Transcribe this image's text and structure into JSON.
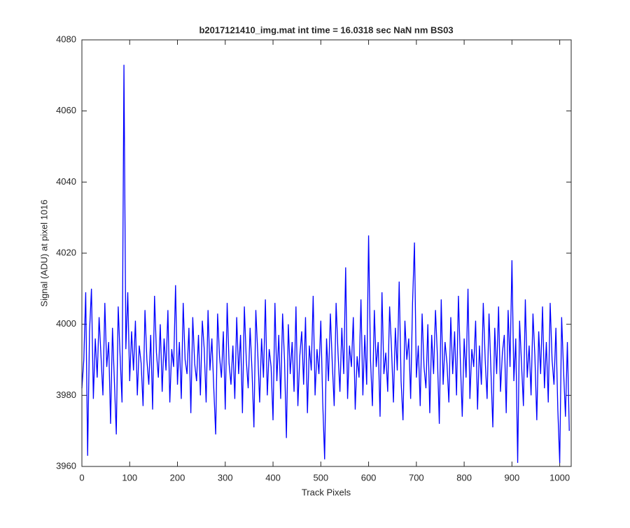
{
  "chart_data": {
    "type": "line",
    "title": "b2017121410_img.mat int time = 16.0318 sec  NaN nm BS03",
    "x_label": "Track Pixels",
    "y_label": "Signal (ADU) at pixel 1016",
    "xlim": [
      0,
      1024
    ],
    "xticks": [
      0,
      100,
      200,
      300,
      400,
      500,
      600,
      700,
      800,
      900,
      1000
    ],
    "ylim": [
      3960,
      4080
    ],
    "yticks": [
      3960,
      3980,
      4000,
      4020,
      4040,
      4060,
      4080
    ],
    "grid": false,
    "x": [
      0,
      4,
      8,
      12,
      16,
      20,
      24,
      28,
      32,
      36,
      40,
      44,
      48,
      52,
      56,
      60,
      64,
      68,
      72,
      76,
      80,
      84,
      88,
      92,
      96,
      100,
      104,
      108,
      112,
      116,
      120,
      124,
      128,
      132,
      136,
      140,
      144,
      148,
      152,
      156,
      160,
      164,
      168,
      172,
      176,
      180,
      184,
      188,
      192,
      196,
      200,
      204,
      208,
      212,
      216,
      220,
      224,
      228,
      232,
      236,
      240,
      244,
      248,
      252,
      256,
      260,
      264,
      268,
      272,
      276,
      280,
      284,
      288,
      292,
      296,
      300,
      304,
      308,
      312,
      316,
      320,
      324,
      328,
      332,
      336,
      340,
      344,
      348,
      352,
      356,
      360,
      364,
      368,
      372,
      376,
      380,
      384,
      388,
      392,
      396,
      400,
      404,
      408,
      412,
      416,
      420,
      424,
      428,
      432,
      436,
      440,
      444,
      448,
      452,
      456,
      460,
      464,
      468,
      472,
      476,
      480,
      484,
      488,
      492,
      496,
      500,
      504,
      508,
      512,
      516,
      520,
      524,
      528,
      532,
      536,
      540,
      544,
      548,
      552,
      556,
      560,
      564,
      568,
      572,
      576,
      580,
      584,
      588,
      592,
      596,
      600,
      604,
      608,
      612,
      616,
      620,
      624,
      628,
      632,
      636,
      640,
      644,
      648,
      652,
      656,
      660,
      664,
      668,
      672,
      676,
      680,
      684,
      688,
      692,
      696,
      700,
      704,
      708,
      712,
      716,
      720,
      724,
      728,
      732,
      736,
      740,
      744,
      748,
      752,
      756,
      760,
      764,
      768,
      772,
      776,
      780,
      784,
      788,
      792,
      796,
      800,
      804,
      808,
      812,
      816,
      820,
      824,
      828,
      832,
      836,
      840,
      844,
      848,
      852,
      856,
      860,
      864,
      868,
      872,
      876,
      880,
      884,
      888,
      892,
      896,
      900,
      904,
      908,
      912,
      916,
      920,
      924,
      928,
      932,
      936,
      940,
      944,
      948,
      952,
      956,
      960,
      964,
      968,
      972,
      976,
      980,
      984,
      988,
      992,
      996,
      1000,
      1004,
      1008,
      1012,
      1016,
      1020
    ],
    "series": [
      {
        "color": "#0000ff",
        "values": [
          3982,
          3990,
          4009,
          3963,
          3998,
          4010,
          3979,
          3996,
          3985,
          4002,
          3991,
          3980,
          4006,
          3988,
          3995,
          3972,
          3999,
          3984,
          3969,
          4005,
          3991,
          3978,
          4073,
          3993,
          4009,
          3984,
          3998,
          3987,
          4001,
          3980,
          3994,
          3989,
          3977,
          4004,
          3990,
          3983,
          3997,
          3976,
          4008,
          3992,
          3985,
          4000,
          3981,
          3996,
          3987,
          4004,
          3978,
          3993,
          3988,
          4011,
          3983,
          3995,
          3979,
          4006,
          3990,
          3986,
          3999,
          3975,
          4002,
          3989,
          3984,
          3997,
          3980,
          4001,
          3993,
          3978,
          4004,
          3987,
          3996,
          3982,
          3969,
          4003,
          3991,
          3985,
          3998,
          3976,
          4006,
          3989,
          3983,
          3994,
          3979,
          4002,
          3986,
          3997,
          3975,
          4005,
          3990,
          3982,
          3999,
          3987,
          3971,
          4004,
          3992,
          3978,
          3996,
          3985,
          4007,
          3980,
          3993,
          3988,
          3973,
          4006,
          3984,
          3997,
          3979,
          4003,
          3990,
          3968,
          4000,
          3986,
          3995,
          3981,
          4005,
          3977,
          3991,
          3998,
          3983,
          4002,
          3975,
          3994,
          3987,
          4008,
          3980,
          3993,
          3986,
          4001,
          3978,
          3962,
          3996,
          3984,
          4003,
          3989,
          3977,
          4006,
          3992,
          3981,
          3999,
          3986,
          4016,
          3979,
          3994,
          3988,
          4002,
          3976,
          3991,
          3985,
          4007,
          3980,
          3997,
          3983,
          4025,
          3990,
          3977,
          4004,
          3988,
          3995,
          3974,
          4009,
          3986,
          3992,
          3981,
          4005,
          3993,
          3978,
          3999,
          3987,
          4012,
          3984,
          3973,
          4001,
          3990,
          3996,
          3979,
          4006,
          4023,
          3985,
          3994,
          3977,
          4003,
          3988,
          3982,
          4000,
          3975,
          3997,
          3986,
          4004,
          3991,
          3972,
          4007,
          3983,
          3995,
          3989,
          3978,
          4002,
          3986,
          3998,
          3980,
          4008,
          3990,
          3974,
          3996,
          3985,
          4010,
          3979,
          3993,
          3988,
          4001,
          3976,
          3994,
          3983,
          4006,
          3990,
          3979,
          4003,
          3987,
          3971,
          3999,
          3986,
          4005,
          3981,
          3992,
          3997,
          3975,
          4004,
          3988,
          4018,
          3984,
          3996,
          3961,
          4001,
          3989,
          3977,
          4007,
          3985,
          3994,
          3980,
          4003,
          3991,
          3973,
          3998,
          3986,
          4005,
          3982,
          3995,
          3978,
          4006,
          3990,
          3983,
          3999,
          3976,
          3961,
          4002,
          3987,
          3974,
          3995,
          3970
        ]
      }
    ]
  }
}
